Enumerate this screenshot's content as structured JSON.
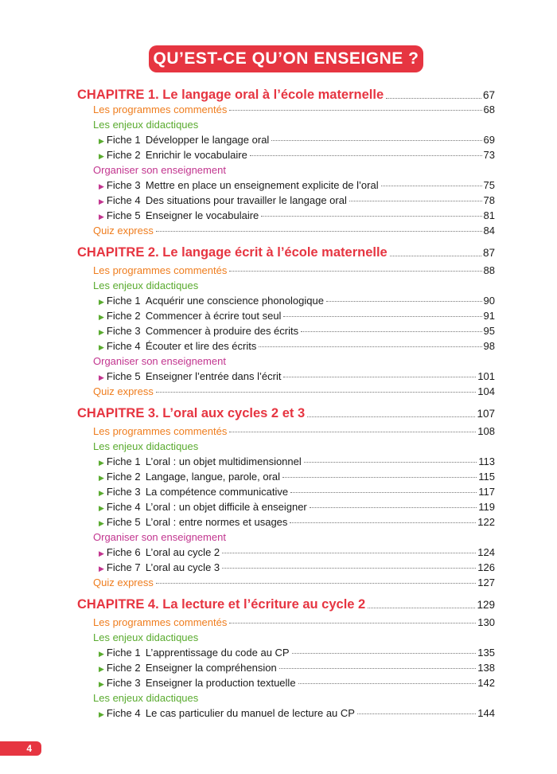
{
  "title": "QU’EST-CE QU’ON ENSEIGNE ?",
  "page_number": "4",
  "colors": {
    "chapter": "#e63541",
    "programmes": "#ef7d1e",
    "enjeux": "#5aab2f",
    "organiser": "#c2358f"
  },
  "chapters": [
    {
      "title": "CHAPITRE 1. Le langage oral à l’école maternelle",
      "page": "67",
      "entries": [
        {
          "type": "section",
          "style": "orange",
          "label": "Les programmes commentés",
          "page": "68"
        },
        {
          "type": "section",
          "style": "green",
          "label": "Les enjeux didactiques"
        },
        {
          "type": "fiche",
          "style": "green",
          "num": "Fiche 1",
          "label": "Développer le langage oral",
          "page": "69"
        },
        {
          "type": "fiche",
          "style": "green",
          "num": "Fiche 2",
          "label": "Enrichir le vocabulaire",
          "page": "73"
        },
        {
          "type": "section",
          "style": "magenta",
          "label": "Organiser son enseignement"
        },
        {
          "type": "fiche",
          "style": "magenta",
          "num": "Fiche 3",
          "label": "Mettre en place un enseignement explicite de l’oral",
          "page": "75"
        },
        {
          "type": "fiche",
          "style": "magenta",
          "num": "Fiche 4",
          "label": "Des situations pour travailler le langage oral",
          "page": "78"
        },
        {
          "type": "fiche",
          "style": "magenta",
          "num": "Fiche 5",
          "label": "Enseigner le vocabulaire",
          "page": "81"
        },
        {
          "type": "section",
          "style": "orange",
          "label": "Quiz express",
          "page": "84"
        }
      ]
    },
    {
      "title": "CHAPITRE 2. Le langage écrit à l’école maternelle",
      "page": "87",
      "entries": [
        {
          "type": "section",
          "style": "orange",
          "label": "Les programmes commentés",
          "page": "88"
        },
        {
          "type": "section",
          "style": "green",
          "label": "Les enjeux didactiques"
        },
        {
          "type": "fiche",
          "style": "green",
          "num": "Fiche 1",
          "label": "Acquérir une conscience phonologique",
          "page": "90"
        },
        {
          "type": "fiche",
          "style": "green",
          "num": "Fiche 2",
          "label": "Commencer à écrire tout seul",
          "page": "91"
        },
        {
          "type": "fiche",
          "style": "green",
          "num": "Fiche 3",
          "label": "Commencer à produire des écrits",
          "page": "95"
        },
        {
          "type": "fiche",
          "style": "green",
          "num": "Fiche 4",
          "label": "Écouter et lire des écrits",
          "page": "98"
        },
        {
          "type": "section",
          "style": "magenta",
          "label": "Organiser son enseignement"
        },
        {
          "type": "fiche",
          "style": "magenta",
          "num": "Fiche 5",
          "label": "Enseigner l’entrée dans l’écrit",
          "page": "101"
        },
        {
          "type": "section",
          "style": "orange",
          "label": "Quiz express",
          "page": "104"
        }
      ]
    },
    {
      "title": "CHAPITRE 3. L’oral aux cycles 2 et 3",
      "page": "107",
      "entries": [
        {
          "type": "section",
          "style": "orange",
          "label": "Les programmes commentés",
          "page": "108"
        },
        {
          "type": "section",
          "style": "green",
          "label": "Les enjeux didactiques"
        },
        {
          "type": "fiche",
          "style": "green",
          "num": "Fiche 1",
          "label": "L’oral : un objet multidimensionnel",
          "page": "113"
        },
        {
          "type": "fiche",
          "style": "green",
          "num": "Fiche 2",
          "label": "Langage, langue, parole, oral",
          "page": "115"
        },
        {
          "type": "fiche",
          "style": "green",
          "num": "Fiche 3",
          "label": "La compétence communicative",
          "page": "117"
        },
        {
          "type": "fiche",
          "style": "green",
          "num": "Fiche 4",
          "label": "L’oral : un objet difficile à enseigner",
          "page": "119"
        },
        {
          "type": "fiche",
          "style": "green",
          "num": "Fiche 5",
          "label": "L’oral : entre normes et usages",
          "page": "122"
        },
        {
          "type": "section",
          "style": "magenta",
          "label": "Organiser son enseignement"
        },
        {
          "type": "fiche",
          "style": "magenta",
          "num": "Fiche 6",
          "label": "L’oral au cycle 2",
          "page": "124"
        },
        {
          "type": "fiche",
          "style": "magenta",
          "num": "Fiche 7",
          "label": "L’oral au cycle 3",
          "page": "126"
        },
        {
          "type": "section",
          "style": "orange",
          "label": "Quiz express",
          "page": "127"
        }
      ]
    },
    {
      "title": "CHAPITRE 4. La lecture et l’écriture au cycle 2",
      "page": "129",
      "entries": [
        {
          "type": "section",
          "style": "orange",
          "label": "Les programmes commentés",
          "page": "130"
        },
        {
          "type": "section",
          "style": "green",
          "label": "Les enjeux didactiques"
        },
        {
          "type": "fiche",
          "style": "green",
          "num": "Fiche 1",
          "label": "L’apprentissage du code au CP",
          "page": "135"
        },
        {
          "type": "fiche",
          "style": "green",
          "num": "Fiche 2",
          "label": "Enseigner la compréhension",
          "page": "138"
        },
        {
          "type": "fiche",
          "style": "green",
          "num": "Fiche 3",
          "label": "Enseigner la production textuelle",
          "page": "142"
        },
        {
          "type": "section",
          "style": "green",
          "label": "Les enjeux didactiques"
        },
        {
          "type": "fiche",
          "style": "green",
          "num": "Fiche 4",
          "label": "Le cas particulier du manuel de lecture au CP",
          "page": "144"
        }
      ]
    }
  ]
}
